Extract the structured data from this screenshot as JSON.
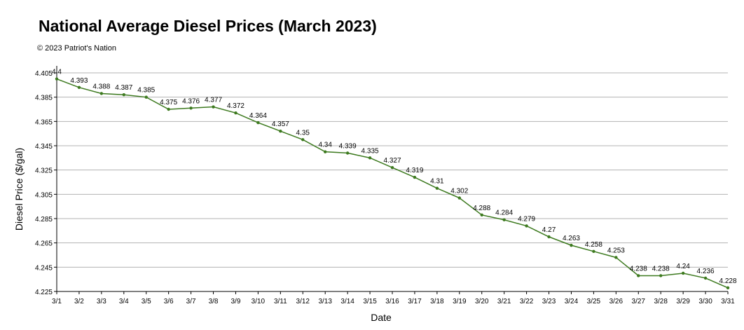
{
  "chart_data": {
    "type": "line",
    "title": "National Average Diesel Prices (March 2023)",
    "subtitle": "© 2023 Patriot's Nation",
    "xlabel": "Date",
    "ylabel": "Diesel Price ($/gal)",
    "ylim": [
      4.225,
      4.405
    ],
    "yticks": [
      "4.225",
      "4.245",
      "4.265",
      "4.285",
      "4.305",
      "4.325",
      "4.345",
      "4.365",
      "4.385",
      "4.405"
    ],
    "grid": true,
    "line_color": "#3d7a1f",
    "categories": [
      "3/1",
      "3/2",
      "3/3",
      "3/4",
      "3/5",
      "3/6",
      "3/7",
      "3/8",
      "3/9",
      "3/10",
      "3/11",
      "3/12",
      "3/13",
      "3/14",
      "3/15",
      "3/16",
      "3/17",
      "3/18",
      "3/19",
      "3/20",
      "3/21",
      "3/22",
      "3/23",
      "3/24",
      "3/25",
      "3/26",
      "3/27",
      "3/28",
      "3/29",
      "3/30",
      "3/31"
    ],
    "values": [
      4.4,
      4.393,
      4.388,
      4.387,
      4.385,
      4.375,
      4.376,
      4.377,
      4.372,
      4.364,
      4.357,
      4.35,
      4.34,
      4.339,
      4.335,
      4.327,
      4.319,
      4.31,
      4.302,
      4.288,
      4.284,
      4.279,
      4.27,
      4.263,
      4.258,
      4.253,
      4.238,
      4.238,
      4.24,
      4.236,
      4.228
    ]
  }
}
